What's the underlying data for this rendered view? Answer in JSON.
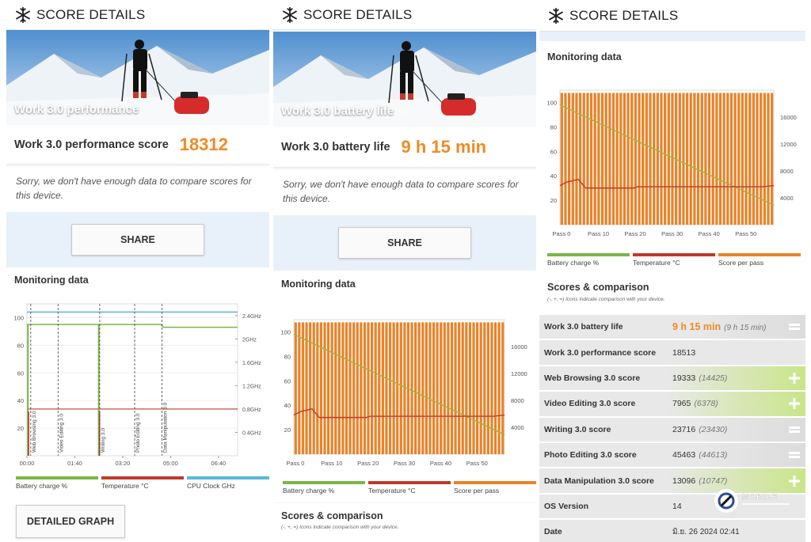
{
  "panel1": {
    "header_title": "SCORE DETAILS",
    "banner_title": "Work 3.0 performance",
    "score_label": "Work 3.0 performance score",
    "score_value": "18312",
    "note": "Sorry, we don't have enough data to compare scores for this device.",
    "share_label": "SHARE",
    "monitoring_title": "Monitoring data",
    "chart": {
      "y_left_ticks": [
        "100",
        "80",
        "60",
        "40",
        "20"
      ],
      "y_right_ticks": [
        "2.4GHz",
        "2GHz",
        "1.6GHz",
        "1.2GHz",
        "0.8GHz",
        "0.4GHz"
      ],
      "x_ticks": [
        "00:00",
        "01:40",
        "03:20",
        "05:00",
        "06:40"
      ],
      "markers": [
        "Web Browsing 3.0",
        "Video Editing 3.0",
        "Writing 3.0",
        "Photo Editing 3.0",
        "Data Manipulation 3.0"
      ]
    },
    "legend": [
      "Battery charge %",
      "Temperature °C",
      "CPU Clock GHz"
    ],
    "detail_button": "DETAILED GRAPH"
  },
  "panel2": {
    "header_title": "SCORE DETAILS",
    "banner_title": "Work 3.0 battery life",
    "banner_version": "3.0",
    "score_label": "Work 3.0 battery life",
    "score_value": "9 h 15 min",
    "note": "Sorry, we don't have enough data to compare scores for this device.",
    "share_label": "SHARE",
    "monitoring_title": "Monitoring data",
    "chart": {
      "y_left_ticks": [
        "100",
        "80",
        "60",
        "40",
        "20"
      ],
      "y_right_ticks": [
        "16000",
        "12000",
        "8000",
        "4000"
      ],
      "x_ticks": [
        "Pass 0",
        "Pass 10",
        "Pass 20",
        "Pass 30",
        "Pass 40",
        "Pass 50"
      ]
    },
    "legend": [
      "Battery charge %",
      "Temperature °C",
      "Score per pass"
    ],
    "scores_title": "Scores & comparison",
    "scores_sub": "(-, +, =) Icons indicate comparison with your device."
  },
  "panel3": {
    "header_title": "SCORE DETAILS",
    "monitoring_title": "Monitoring data",
    "chart": {
      "y_left_ticks": [
        "100",
        "80",
        "60",
        "40",
        "20"
      ],
      "y_right_ticks": [
        "16000",
        "12000",
        "8000",
        "4000"
      ],
      "x_ticks": [
        "Pass 0",
        "Pass 10",
        "Pass 20",
        "Pass 30",
        "Pass 40",
        "Pass 50"
      ]
    },
    "legend": [
      "Battery charge %",
      "Temperature °C",
      "Score per pass"
    ],
    "scores_title": "Scores & comparison",
    "scores_sub": "(-, +, =) Icons indicate comparison with your device.",
    "rows": [
      {
        "name": "Work 3.0 battery life",
        "value": "9 h 15 min",
        "avg": "(9 h 15 min)",
        "indicator": "equal"
      },
      {
        "name": "Work 3.0 performance score",
        "value": "18513",
        "avg": "",
        "indicator": "none"
      },
      {
        "name": "Web Browsing 3.0 score",
        "value": "19333",
        "avg": "(14425)",
        "indicator": "plus"
      },
      {
        "name": "Video Editing 3.0 score",
        "value": "7965",
        "avg": "(6378)",
        "indicator": "plus"
      },
      {
        "name": "Writing 3.0 score",
        "value": "23716",
        "avg": "(23430)",
        "indicator": "equal"
      },
      {
        "name": "Photo Editing 3.0 score",
        "value": "45463",
        "avg": "(44613)",
        "indicator": "equal"
      },
      {
        "name": "Data Manipulation 3.0 score",
        "value": "13096",
        "avg": "(10747)",
        "indicator": "plus"
      },
      {
        "name": "OS Version",
        "value": "14",
        "avg": "",
        "indicator": "none"
      },
      {
        "name": "Date",
        "value": "มิ.ย. 26 2024 02:41",
        "avg": "",
        "indicator": "none"
      }
    ]
  },
  "colors": {
    "accent_orange": "#f08a24",
    "battery_green": "#7ab648",
    "temperature_red": "#c0392b",
    "cpu_blue": "#5bb8d6",
    "score_bar_orange": "#e8832a",
    "share_bg": "#e8f1f9",
    "compare_green": "#b6dc63"
  },
  "watermark_text": "MOBILE"
}
